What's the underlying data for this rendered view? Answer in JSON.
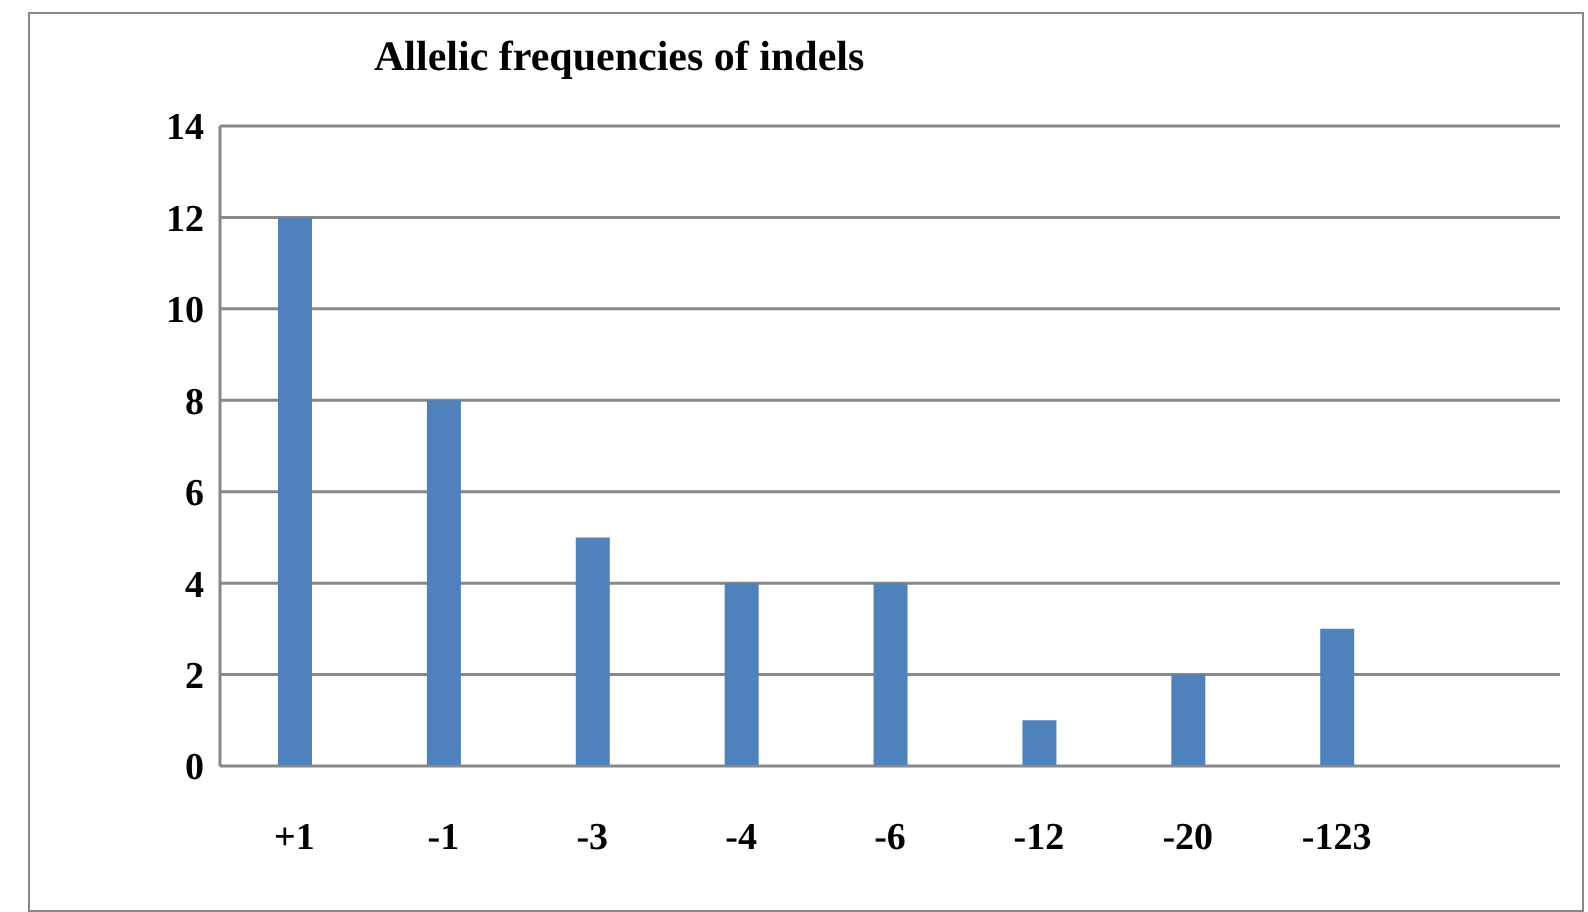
{
  "chart_data": {
    "type": "bar",
    "title": "Allelic frequencies of indels",
    "categories": [
      "+1",
      "-1",
      "-3",
      "-4",
      "-6",
      "-12",
      "-20",
      "-123",
      null
    ],
    "values": [
      12,
      8,
      5,
      4,
      4,
      1,
      2,
      3,
      null
    ],
    "color": "#4f81bd",
    "ylim": [
      0,
      14
    ],
    "yticks": [
      0,
      2,
      4,
      6,
      8,
      10,
      12,
      14
    ],
    "grid": "y",
    "legend": false
  }
}
